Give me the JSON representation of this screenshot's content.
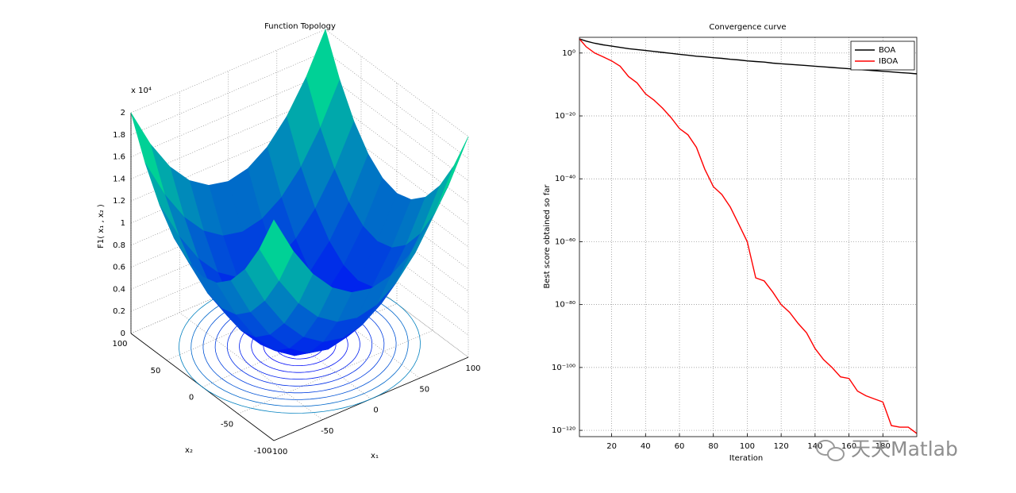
{
  "chart_data": [
    {
      "type": "surface",
      "title": "Function Topology",
      "xlabel": "x₁",
      "ylabel": "x₂",
      "zlabel": "F1( x₁ , x₂ )",
      "zscale_label": "x 10⁴",
      "x1": [
        -100,
        -80,
        -60,
        -40,
        -20,
        0,
        20,
        40,
        60,
        80,
        100
      ],
      "x2": [
        -100,
        -80,
        -60,
        -40,
        -20,
        0,
        20,
        40,
        60,
        80,
        100
      ],
      "z": [
        [
          2,
          1.64,
          1.36,
          1.16,
          1.04,
          1,
          1.04,
          1.16,
          1.36,
          1.64,
          2
        ],
        [
          1.64,
          1.28,
          1,
          0.8,
          0.68,
          0.64,
          0.68,
          0.8,
          1,
          1.28,
          1.64
        ],
        [
          1.36,
          1,
          0.72,
          0.52,
          0.4,
          0.36,
          0.4,
          0.52,
          0.72,
          1,
          1.36
        ],
        [
          1.16,
          0.8,
          0.52,
          0.32,
          0.2,
          0.16,
          0.2,
          0.32,
          0.52,
          0.8,
          1.16
        ],
        [
          1.04,
          0.68,
          0.4,
          0.2,
          0.08,
          0.04,
          0.08,
          0.2,
          0.4,
          0.68,
          1.04
        ],
        [
          1,
          0.64,
          0.36,
          0.16,
          0.04,
          0,
          0.04,
          0.16,
          0.36,
          0.64,
          1
        ],
        [
          1.04,
          0.68,
          0.4,
          0.2,
          0.08,
          0.04,
          0.08,
          0.2,
          0.4,
          0.68,
          1.04
        ],
        [
          1.16,
          0.8,
          0.52,
          0.32,
          0.2,
          0.16,
          0.2,
          0.32,
          0.52,
          0.8,
          1.16
        ],
        [
          1.36,
          1,
          0.72,
          0.52,
          0.4,
          0.36,
          0.4,
          0.52,
          0.72,
          1,
          1.36
        ],
        [
          1.64,
          1.28,
          1,
          0.8,
          0.68,
          0.64,
          0.68,
          0.8,
          1,
          1.28,
          1.64
        ],
        [
          2,
          1.64,
          1.36,
          1.16,
          1.04,
          1,
          1.04,
          1.16,
          1.36,
          1.64,
          2
        ]
      ],
      "xlim": [
        -100,
        100
      ],
      "ylim": [
        -100,
        100
      ],
      "zlim": [
        0,
        2
      ],
      "xticks": [
        -100,
        -50,
        0,
        50,
        100
      ],
      "yticks": [
        -100,
        -50,
        0,
        50,
        100
      ],
      "zticks": [
        0,
        0.2,
        0.4,
        0.6,
        0.8,
        1,
        1.2,
        1.4,
        1.6,
        1.8,
        2
      ],
      "grid": true
    },
    {
      "type": "line",
      "title": "Convergence curve",
      "xlabel": "Iteration",
      "ylabel": "Best score obtained so far",
      "x": [
        1,
        5,
        10,
        15,
        20,
        25,
        30,
        35,
        40,
        45,
        50,
        55,
        60,
        65,
        70,
        75,
        80,
        85,
        90,
        95,
        100,
        105,
        110,
        115,
        120,
        125,
        130,
        135,
        140,
        145,
        150,
        155,
        160,
        165,
        170,
        175,
        180,
        185,
        190,
        195,
        200
      ],
      "series": [
        {
          "name": "BOA",
          "color": "#000000",
          "values": [
            31623,
            6310,
            1259,
            398,
            158,
            63,
            25,
            12.6,
            6.3,
            3.2,
            1.6,
            0.79,
            0.4,
            0.2,
            0.1,
            0.063,
            0.032,
            0.02,
            0.01,
            0.0063,
            0.0032,
            0.002,
            0.0013,
            0.00063,
            0.0004,
            0.00025,
            0.00016,
            0.0001,
            6.3e-05,
            4e-05,
            2.5e-05,
            1.6e-05,
            1e-05,
            6.3e-06,
            4e-06,
            2.5e-06,
            1.6e-06,
            1e-06,
            6.3e-07,
            4e-07,
            2.5e-07
          ]
        },
        {
          "name": "IBOA",
          "color": "#ff0000",
          "values": [
            31623,
            100,
            1,
            0.063,
            0.0032,
            6.3e-05,
            3.2e-08,
            3.2e-10,
            1e-13,
            1e-15,
            3.2e-18,
            3.2e-21,
            1e-24,
            1e-26,
            1e-30,
            1e-37,
            3.2e-43,
            1e-45,
            1e-49,
            3.2e-55,
            1e-60,
            3.2e-72,
            3.2e-73,
            1e-76,
            1e-80,
            3.2e-83,
            1e-86,
            1e-89,
            1e-94,
            3.2e-98,
            1e-100,
            1e-103,
            3.2e-104,
            3.2e-108,
            1e-109,
            1e-110,
            1e-111,
            3.2e-119,
            1e-119,
            1e-119,
            1e-121
          ]
        }
      ],
      "xlim": [
        1,
        200
      ],
      "ylim": [
        1e-122,
        100000
      ],
      "yscale": "log",
      "xticks": [
        20,
        40,
        60,
        80,
        100,
        120,
        140,
        160,
        180
      ],
      "yticks": [
        {
          "value": 1,
          "label": "10⁰"
        },
        {
          "value": 1e-20,
          "label": "10⁻²⁰"
        },
        {
          "value": 1e-40,
          "label": "10⁻⁴⁰"
        },
        {
          "value": 1e-60,
          "label": "10⁻⁶⁰"
        },
        {
          "value": 1e-80,
          "label": "10⁻⁸⁰"
        },
        {
          "value": 1e-100,
          "label": "10⁻¹⁰⁰"
        },
        {
          "value": 1e-120,
          "label": "10⁻¹²⁰"
        }
      ],
      "grid": true,
      "legend": "northeast"
    }
  ],
  "watermark": "天天Matlab"
}
